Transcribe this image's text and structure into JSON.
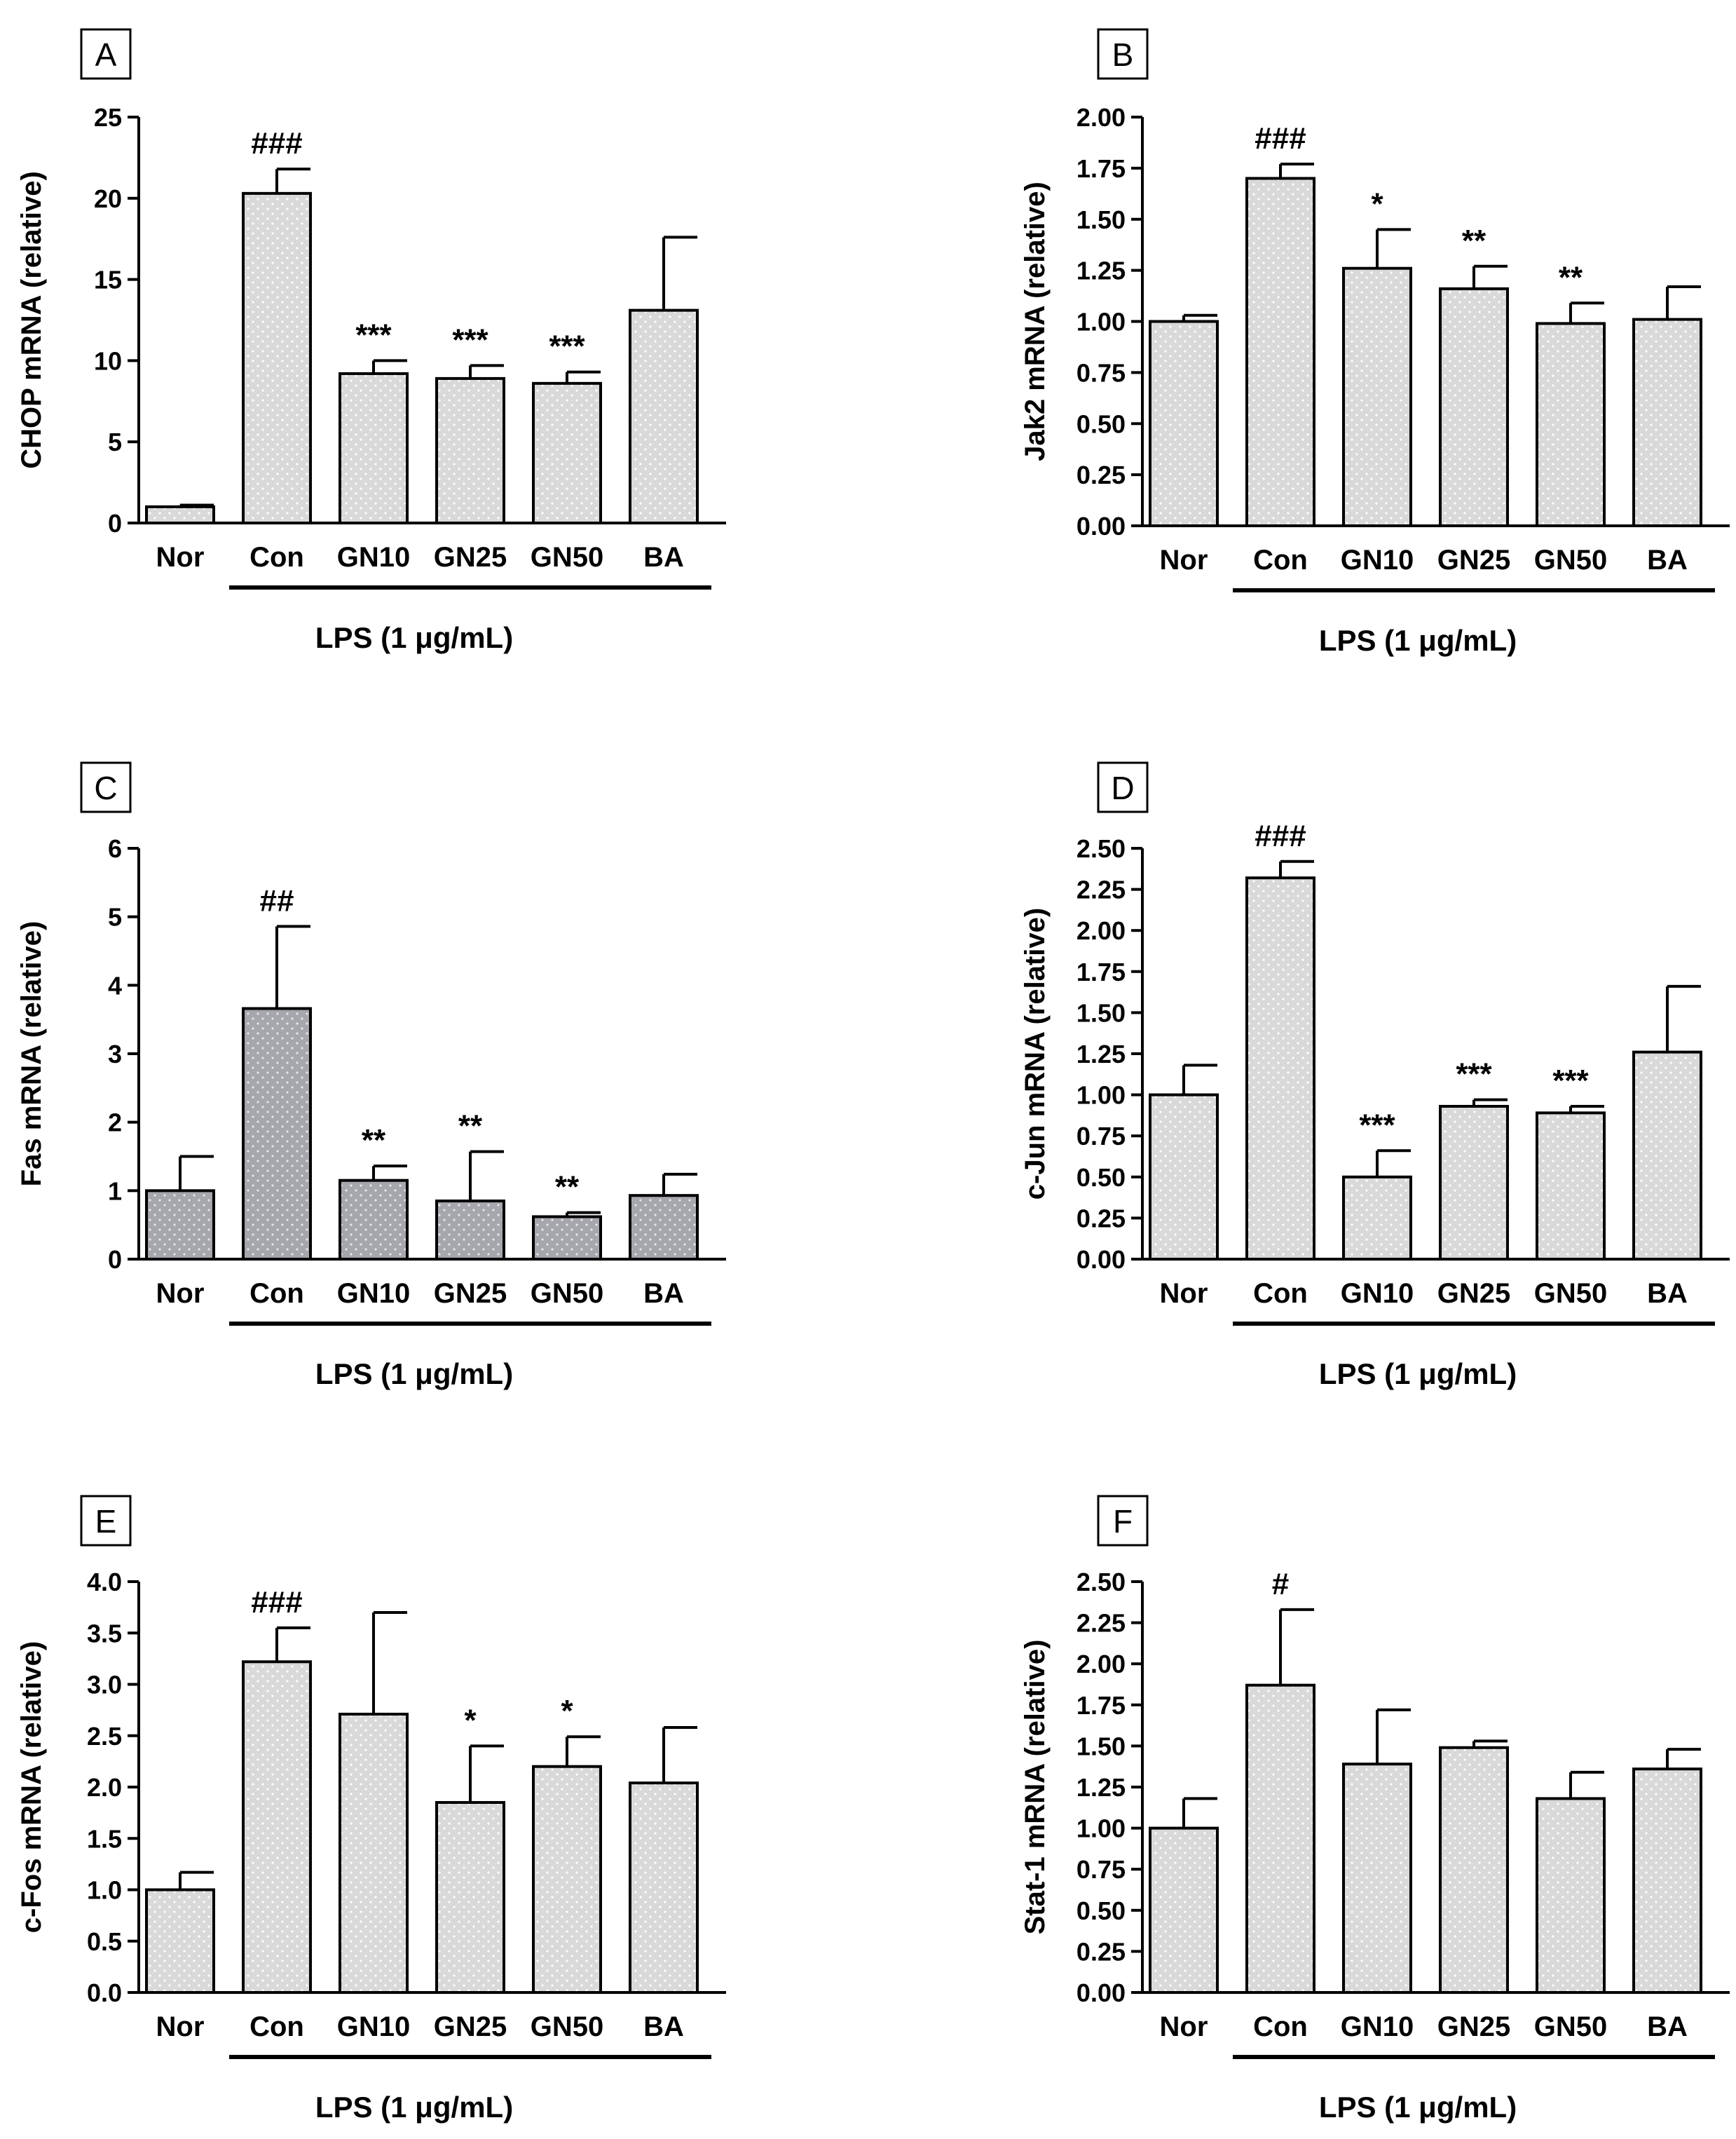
{
  "figure": {
    "lps_bracket_label": "LPS (1 μg/mL)"
  },
  "chart_data": [
    {
      "type": "bar",
      "panel": "A",
      "ylabel": "CHOP mRNA (relative)",
      "categories": [
        "Nor",
        "Con",
        "GN10",
        "GN25",
        "GN50",
        "BA"
      ],
      "values": [
        1.0,
        20.3,
        9.2,
        8.9,
        8.6,
        13.1
      ],
      "errors": [
        0.1,
        1.5,
        0.8,
        0.8,
        0.7,
        4.5
      ],
      "significance": [
        "",
        "###",
        "***",
        "***",
        "***",
        ""
      ],
      "ylim": [
        0,
        25
      ],
      "yticks": [
        "0",
        "5",
        "10",
        "15",
        "20",
        "25"
      ],
      "bar_fill": "#d9d9d9",
      "lps_bracket": "Con–BA"
    },
    {
      "type": "bar",
      "panel": "B",
      "ylabel": "Jak2 mRNA (relative)",
      "categories": [
        "Nor",
        "Con",
        "GN10",
        "GN25",
        "GN50",
        "BA"
      ],
      "values": [
        1.0,
        1.7,
        1.26,
        1.16,
        0.99,
        1.01
      ],
      "errors": [
        0.03,
        0.07,
        0.19,
        0.11,
        0.1,
        0.16
      ],
      "significance": [
        "",
        "###",
        "*",
        "**",
        "**",
        ""
      ],
      "ylim": [
        0,
        2.0
      ],
      "yticks": [
        "0.00",
        "0.25",
        "0.50",
        "0.75",
        "1.00",
        "1.25",
        "1.50",
        "1.75",
        "2.00"
      ],
      "bar_fill": "#d9d9d9",
      "lps_bracket": "Con–BA"
    },
    {
      "type": "bar",
      "panel": "C",
      "ylabel": "Fas mRNA (relative)",
      "categories": [
        "Nor",
        "Con",
        "GN10",
        "GN25",
        "GN50",
        "BA"
      ],
      "values": [
        1.0,
        3.66,
        1.15,
        0.85,
        0.62,
        0.93
      ],
      "errors": [
        0.5,
        1.2,
        0.21,
        0.72,
        0.06,
        0.31
      ],
      "significance": [
        "",
        "##",
        "**",
        "**",
        "**",
        ""
      ],
      "ylim": [
        0,
        6
      ],
      "yticks": [
        "0",
        "1",
        "2",
        "3",
        "4",
        "5",
        "6"
      ],
      "bar_fill": "#a6a6ad",
      "lps_bracket": "Con–BA"
    },
    {
      "type": "bar",
      "panel": "D",
      "ylabel": "c-Jun mRNA (relative)",
      "categories": [
        "Nor",
        "Con",
        "GN10",
        "GN25",
        "GN50",
        "BA"
      ],
      "values": [
        1.0,
        2.32,
        0.5,
        0.93,
        0.89,
        1.26
      ],
      "errors": [
        0.18,
        0.1,
        0.16,
        0.04,
        0.04,
        0.4
      ],
      "significance": [
        "",
        "###",
        "***",
        "***",
        "***",
        ""
      ],
      "ylim": [
        0,
        2.5
      ],
      "yticks": [
        "0.00",
        "0.25",
        "0.50",
        "0.75",
        "1.00",
        "1.25",
        "1.50",
        "1.75",
        "2.00",
        "2.25",
        "2.50"
      ],
      "bar_fill": "#d9d9d9",
      "lps_bracket": "Con–BA"
    },
    {
      "type": "bar",
      "panel": "E",
      "ylabel": "c-Fos mRNA (relative)",
      "categories": [
        "Nor",
        "Con",
        "GN10",
        "GN25",
        "GN50",
        "BA"
      ],
      "values": [
        1.0,
        3.22,
        2.71,
        1.85,
        2.2,
        2.04
      ],
      "errors": [
        0.17,
        0.33,
        0.99,
        0.55,
        0.29,
        0.54
      ],
      "significance": [
        "",
        "###",
        "",
        "*",
        "*",
        ""
      ],
      "ylim": [
        0,
        4.0
      ],
      "yticks": [
        "0.0",
        "0.5",
        "1.0",
        "1.5",
        "2.0",
        "2.5",
        "3.0",
        "3.5",
        "4.0"
      ],
      "bar_fill": "#d9d9d9",
      "lps_bracket": "Con–BA"
    },
    {
      "type": "bar",
      "panel": "F",
      "ylabel": "Stat-1 mRNA (relative)",
      "categories": [
        "Nor",
        "Con",
        "GN10",
        "GN25",
        "GN50",
        "BA"
      ],
      "values": [
        1.0,
        1.87,
        1.39,
        1.49,
        1.18,
        1.36
      ],
      "errors": [
        0.18,
        0.46,
        0.33,
        0.04,
        0.16,
        0.12
      ],
      "significance": [
        "",
        "#",
        "",
        "",
        "",
        ""
      ],
      "ylim": [
        0,
        2.5
      ],
      "yticks": [
        "0.00",
        "0.25",
        "0.50",
        "0.75",
        "1.00",
        "1.25",
        "1.50",
        "1.75",
        "2.00",
        "2.25",
        "2.50"
      ],
      "bar_fill": "#d9d9d9",
      "lps_bracket": "Con–BA"
    }
  ]
}
